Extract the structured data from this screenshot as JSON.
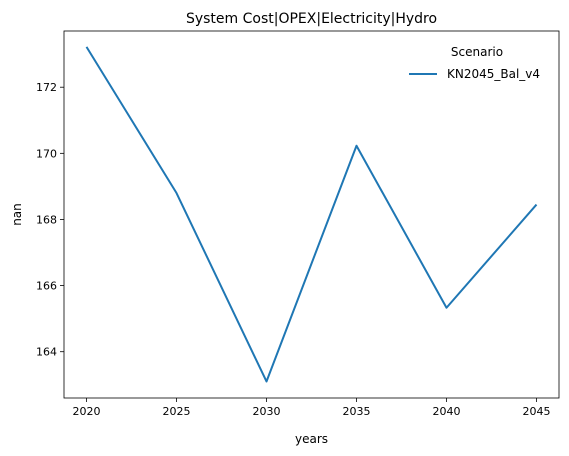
{
  "chart_data": {
    "type": "line",
    "title": "System Cost|OPEX|Electricity|Hydro",
    "xlabel": "years",
    "ylabel": "nan",
    "x": [
      2020,
      2025,
      2030,
      2035,
      2040,
      2045
    ],
    "xticks": [
      "2020",
      "2025",
      "2030",
      "2035",
      "2040",
      "2045"
    ],
    "yticks": [
      "164",
      "166",
      "168",
      "170",
      "172"
    ],
    "xlim": [
      2018.75,
      2046.25
    ],
    "ylim": [
      162.6,
      173.7
    ],
    "grid": false,
    "legend": {
      "title": "Scenario",
      "placement": "top-right"
    },
    "series": [
      {
        "name": "KN2045_Bal_v4",
        "color": "#1f77b4",
        "values": [
          173.22,
          168.8,
          163.1,
          170.23,
          165.33,
          168.45
        ]
      }
    ]
  }
}
